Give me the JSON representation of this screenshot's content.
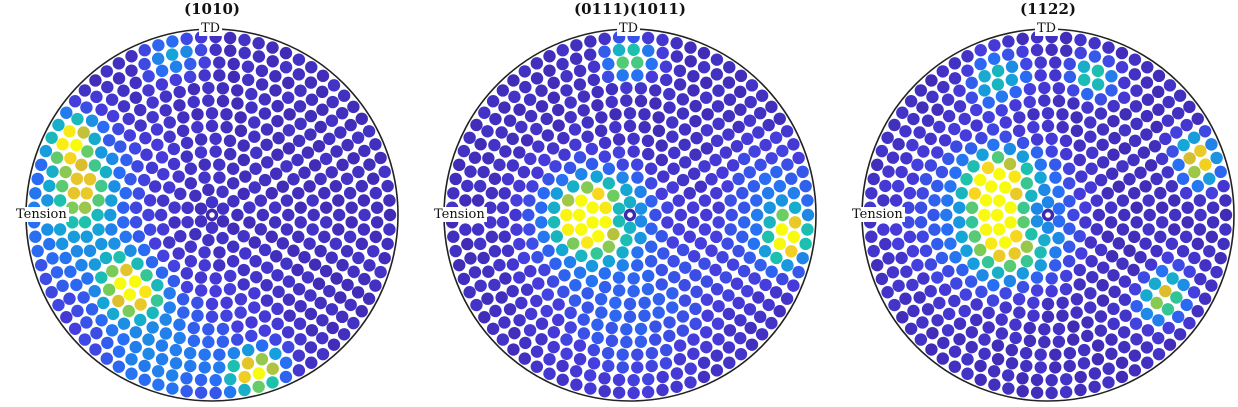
{
  "chart_data": [
    {
      "type": "scatter",
      "title": "(10¯1¯0)",
      "title_parts": [
        {
          "t": "(10",
          "ob": false
        },
        {
          "t": "1",
          "ob": true
        },
        {
          "t": "0)",
          "ob": false
        }
      ],
      "top_label": "TD",
      "left_label": "Tension",
      "projection": "polar",
      "rings": 14,
      "colormap": "parula",
      "color_range": [
        0,
        1
      ],
      "hotspots": [
        {
          "az": 152,
          "r": 0.9,
          "w": 0.08,
          "amp": 0.9
        },
        {
          "az": 168,
          "r": 0.74,
          "w": 0.1,
          "amp": 0.55
        },
        {
          "az": 222,
          "r": 0.62,
          "w": 0.09,
          "amp": 0.95
        },
        {
          "az": 286,
          "r": 0.92,
          "w": 0.08,
          "amp": 1.0
        },
        {
          "az": 104,
          "r": 0.92,
          "w": 0.08,
          "amp": 0.4
        },
        {
          "az": 180,
          "r": 0.8,
          "w": 0.25,
          "amp": 0.35
        },
        {
          "az": 250,
          "r": 0.85,
          "w": 0.25,
          "amp": 0.3
        }
      ]
    },
    {
      "type": "scatter",
      "title": "(01¯1¯1)(10¯1¯1)",
      "title_parts": [
        {
          "t": "(01",
          "ob": false
        },
        {
          "t": "1",
          "ob": true
        },
        {
          "t": "1)(10",
          "ob": false
        },
        {
          "t": "1",
          "ob": true
        },
        {
          "t": "1)",
          "ob": false
        }
      ],
      "top_label": "TD",
      "left_label": "Tension",
      "projection": "polar",
      "rings": 14,
      "colormap": "parula",
      "color_range": [
        0,
        1
      ],
      "hotspots": [
        {
          "az": 185,
          "r": 0.25,
          "w": 0.1,
          "amp": 1.0
        },
        {
          "az": 180,
          "r": 0.25,
          "w": 0.22,
          "amp": 0.35
        },
        {
          "az": 352,
          "r": 0.9,
          "w": 0.07,
          "amp": 0.95
        },
        {
          "az": 90,
          "r": 0.88,
          "w": 0.07,
          "amp": 0.7
        },
        {
          "az": 0,
          "r": 0.85,
          "w": 0.2,
          "amp": 0.3
        },
        {
          "az": 270,
          "r": 0.55,
          "w": 0.3,
          "amp": 0.2
        }
      ]
    },
    {
      "type": "scatter",
      "title": "(11¯2¯2)",
      "title_parts": [
        {
          "t": "(11",
          "ob": false
        },
        {
          "t": "2",
          "ob": true
        },
        {
          "t": "2)",
          "ob": false
        }
      ],
      "top_label": "TD",
      "left_label": "Tension",
      "projection": "polar",
      "rings": 14,
      "colormap": "parula",
      "color_range": [
        0,
        1
      ],
      "hotspots": [
        {
          "az": 150,
          "r": 0.35,
          "w": 0.1,
          "amp": 1.0
        },
        {
          "az": 210,
          "r": 0.3,
          "w": 0.12,
          "amp": 0.7
        },
        {
          "az": 20,
          "r": 0.9,
          "w": 0.07,
          "amp": 1.0
        },
        {
          "az": 325,
          "r": 0.8,
          "w": 0.08,
          "amp": 0.8
        },
        {
          "az": 72,
          "r": 0.82,
          "w": 0.07,
          "amp": 0.6
        },
        {
          "az": 110,
          "r": 0.82,
          "w": 0.09,
          "amp": 0.5
        },
        {
          "az": 180,
          "r": 0.35,
          "w": 0.3,
          "amp": 0.3
        }
      ]
    }
  ]
}
